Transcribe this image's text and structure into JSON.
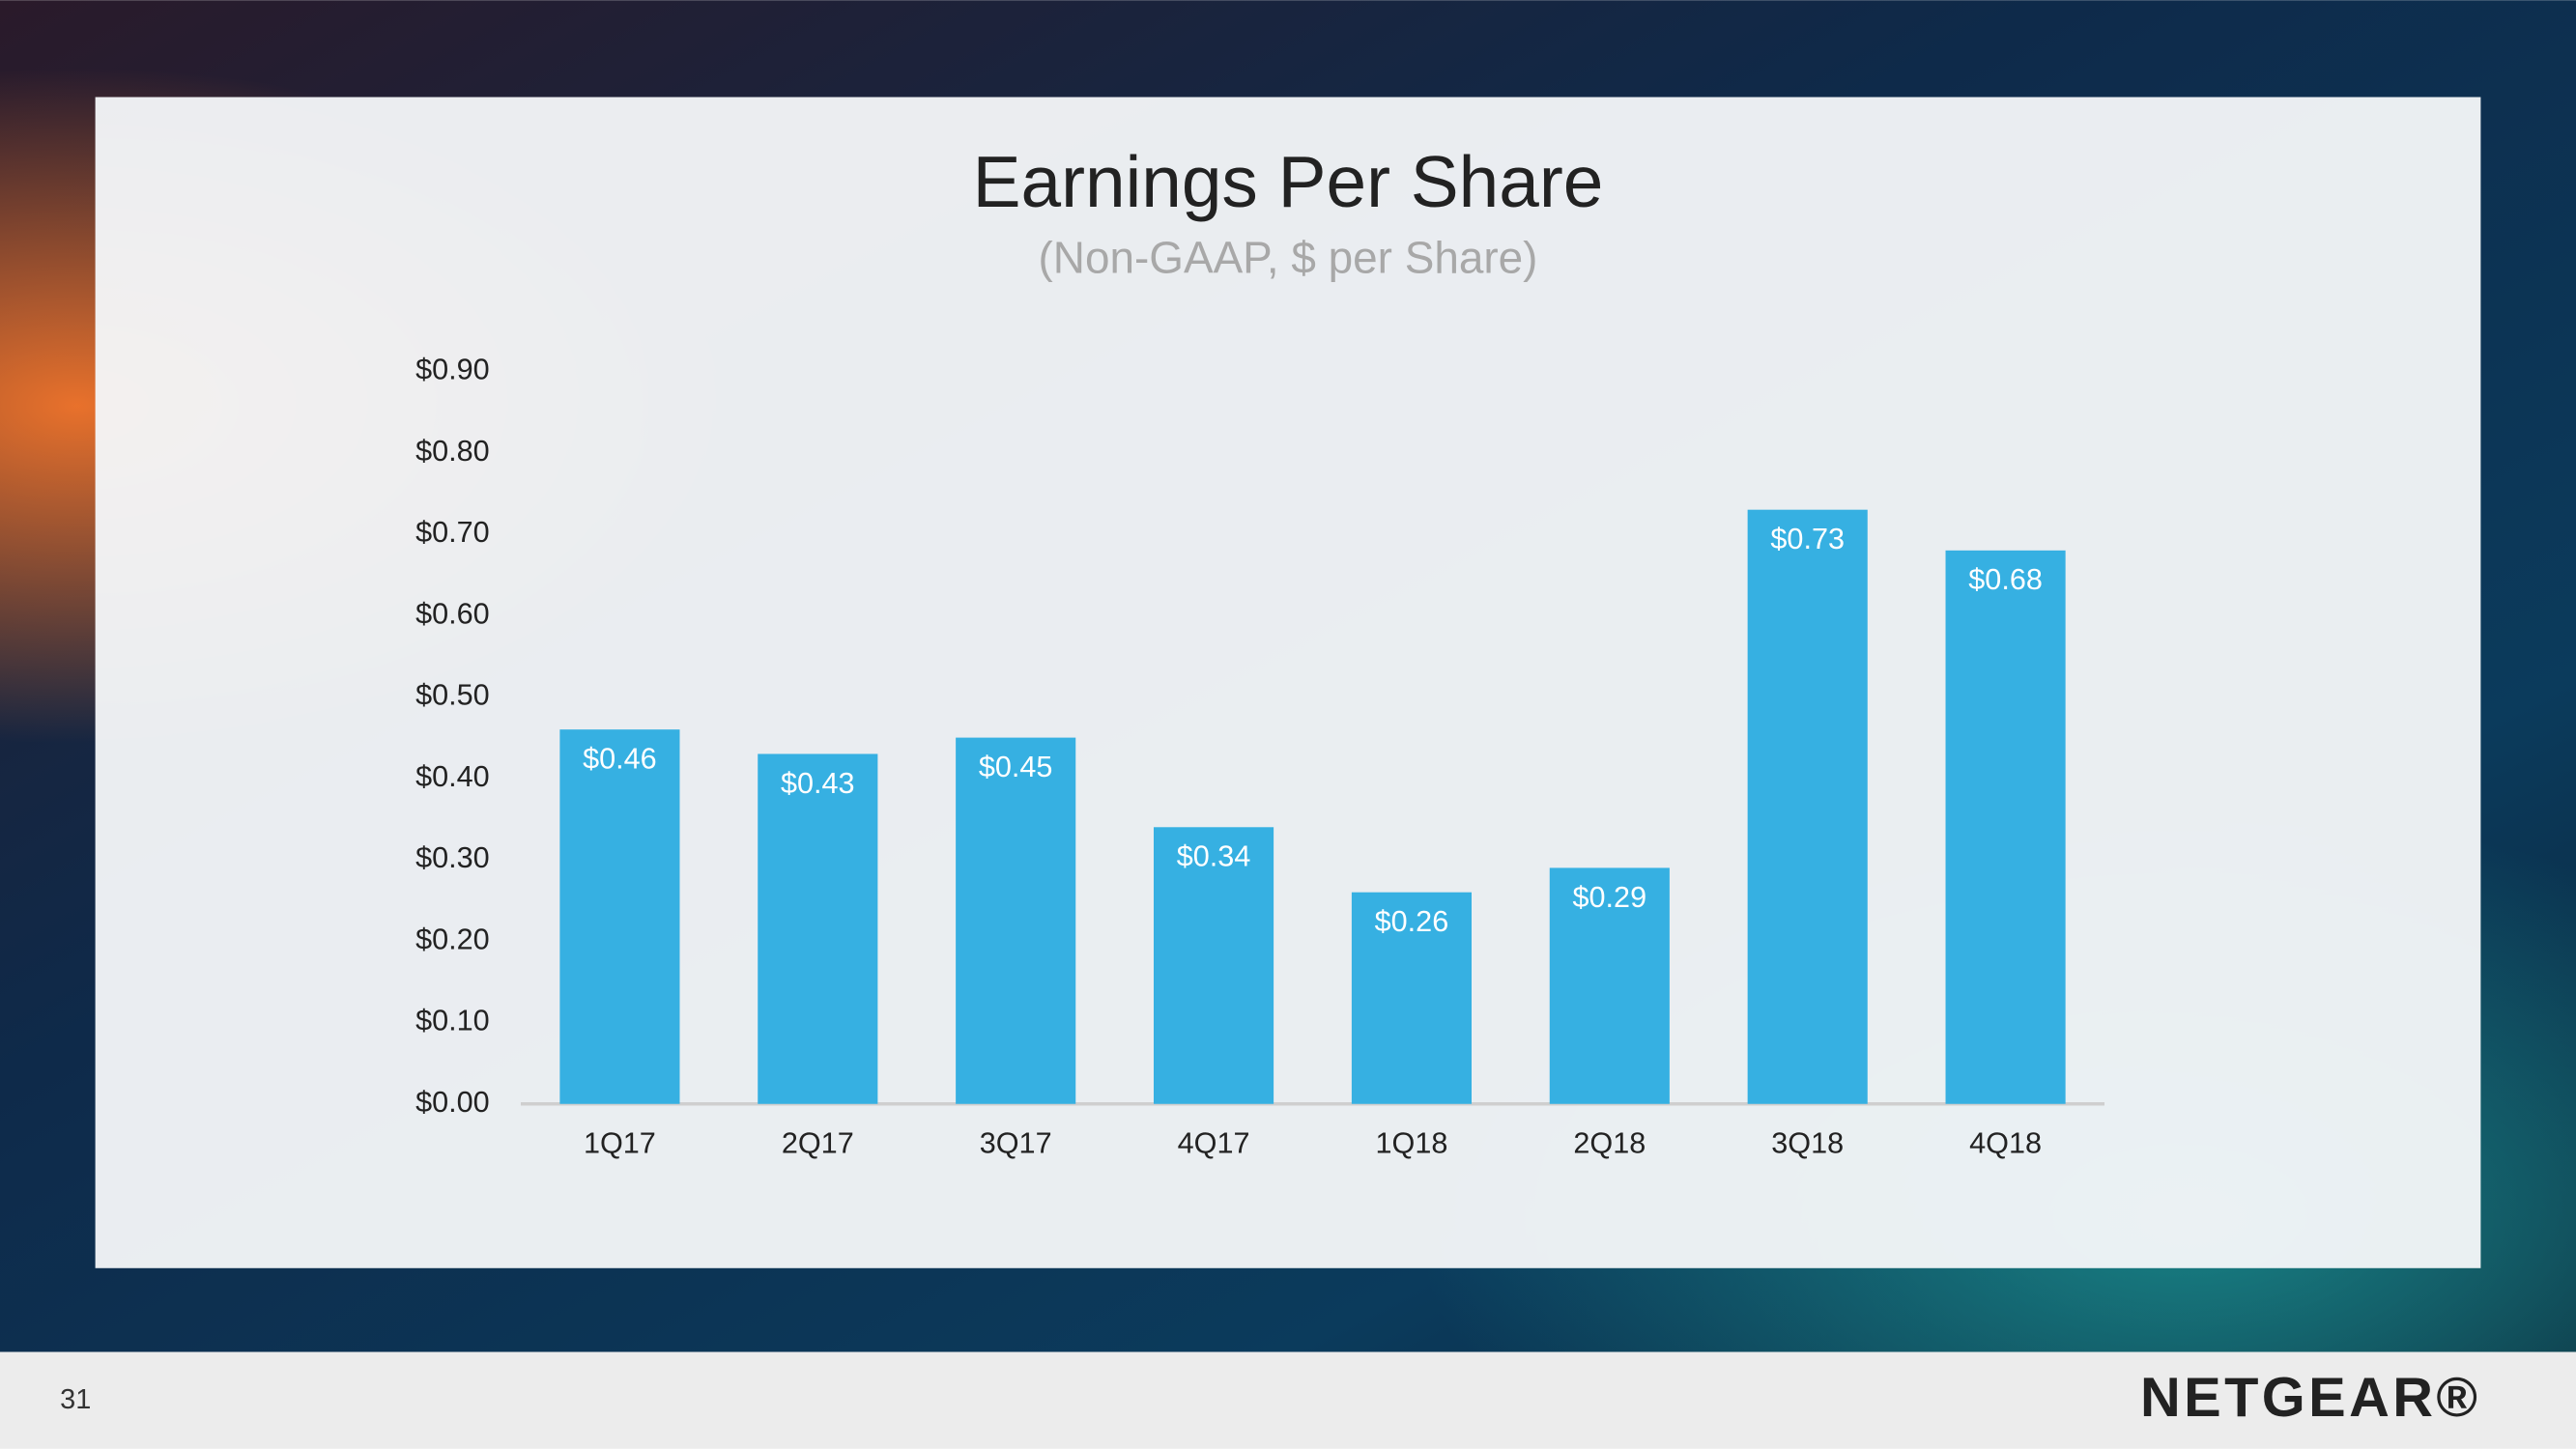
{
  "chart_data": {
    "type": "bar",
    "title": "Earnings Per Share",
    "subtitle": "(Non-GAAP, $ per Share)",
    "categories": [
      "1Q17",
      "2Q17",
      "3Q17",
      "4Q17",
      "1Q18",
      "2Q18",
      "3Q18",
      "4Q18"
    ],
    "values": [
      0.46,
      0.43,
      0.45,
      0.34,
      0.26,
      0.29,
      0.73,
      0.68
    ],
    "value_labels": [
      "$0.46",
      "$0.43",
      "$0.45",
      "$0.34",
      "$0.26",
      "$0.29",
      "$0.73",
      "$0.68"
    ],
    "color": "#36b0e2",
    "ylim": [
      0,
      0.9
    ],
    "yticks": [
      {
        "value": 0,
        "label": "$0.00"
      },
      {
        "value": 0.1,
        "label": "$0.10"
      },
      {
        "value": 0.2,
        "label": "$0.20"
      },
      {
        "value": 0.3,
        "label": "$0.30"
      },
      {
        "value": 0.4,
        "label": "$0.40"
      },
      {
        "value": 0.5,
        "label": "$0.50"
      },
      {
        "value": 0.6,
        "label": "$0.60"
      },
      {
        "value": 0.7,
        "label": "$0.70"
      },
      {
        "value": 0.8,
        "label": "$0.80"
      },
      {
        "value": 0.9,
        "label": "$0.90"
      }
    ],
    "grid": false
  },
  "footer": {
    "page_number": "31",
    "logo": "NETGEAR®"
  }
}
